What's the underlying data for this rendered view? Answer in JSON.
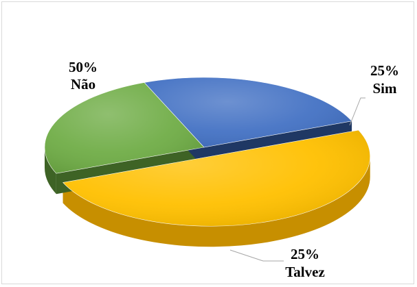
{
  "chart_data": {
    "type": "pie",
    "title": "",
    "slices": [
      {
        "label": "Não",
        "value": 50,
        "display": "50%",
        "color": "#FFC000",
        "side": "#C78F00",
        "exploded": true
      },
      {
        "label": "Sim",
        "value": 25,
        "display": "25%",
        "color": "#70AD47",
        "side": "#3E6325",
        "exploded": false
      },
      {
        "label": "Talvez",
        "value": 25,
        "display": "25%",
        "color": "#4472C4",
        "side": "#1F3864",
        "exploded": false
      }
    ],
    "legend": "none",
    "style": "3d-pie"
  }
}
